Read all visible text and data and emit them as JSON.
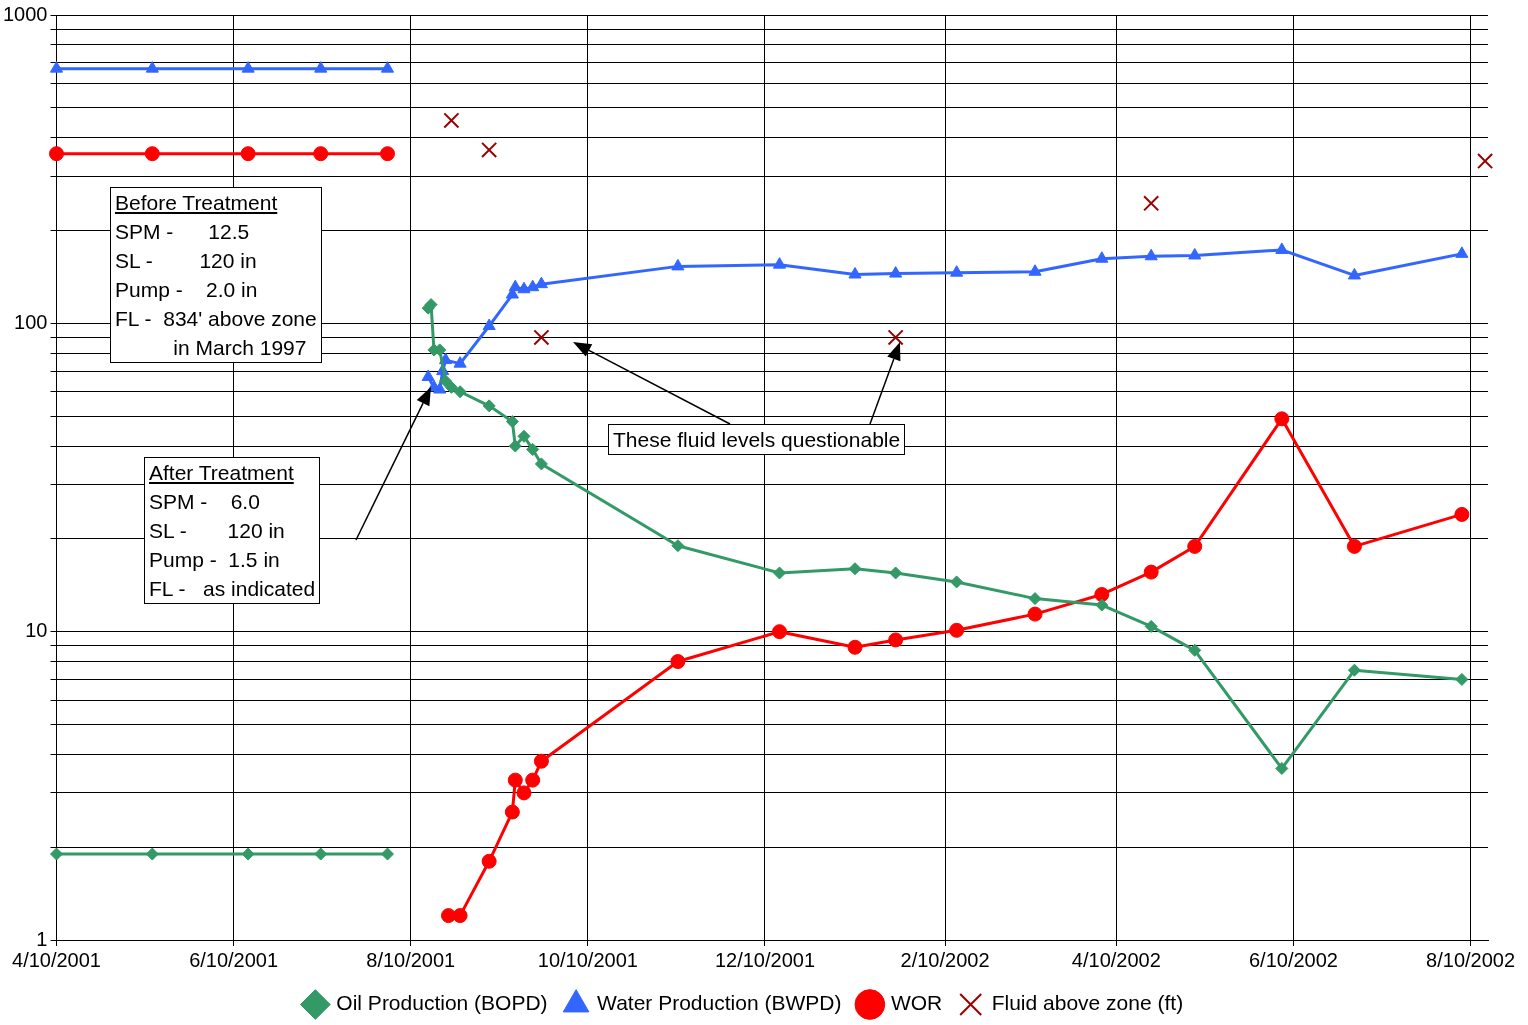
{
  "chart_data": {
    "type": "line",
    "xlim": [
      "2001-04-10",
      "2002-08-16"
    ],
    "xticks": [
      {
        "value": "2001-04-10",
        "label": "4/10/2001"
      },
      {
        "value": "2001-06-10",
        "label": "6/10/2001"
      },
      {
        "value": "2001-08-10",
        "label": "8/10/2001"
      },
      {
        "value": "2001-10-10",
        "label": "10/10/2001"
      },
      {
        "value": "2001-12-10",
        "label": "12/10/2001"
      },
      {
        "value": "2002-02-10",
        "label": "2/10/2002"
      },
      {
        "value": "2002-04-10",
        "label": "4/10/2002"
      },
      {
        "value": "2002-06-10",
        "label": "6/10/2002"
      },
      {
        "value": "2002-08-10",
        "label": "8/10/2002"
      }
    ],
    "log": "y",
    "ylim": [
      1,
      1000
    ],
    "yticks": [
      1,
      {
        "value": 2,
        "label": null
      },
      {
        "value": 3,
        "label": null
      },
      {
        "value": 4,
        "label": null
      },
      {
        "value": 5,
        "label": null
      },
      {
        "value": 6,
        "label": null
      },
      {
        "value": 7,
        "label": null
      },
      {
        "value": 8,
        "label": null
      },
      {
        "value": 9,
        "label": null
      },
      10,
      {
        "value": 20,
        "label": null
      },
      {
        "value": 30,
        "label": null
      },
      {
        "value": 40,
        "label": null
      },
      {
        "value": 50,
        "label": null
      },
      {
        "value": 60,
        "label": null
      },
      {
        "value": 70,
        "label": null
      },
      {
        "value": 80,
        "label": null
      },
      {
        "value": 90,
        "label": null
      },
      100,
      {
        "value": 200,
        "label": null
      },
      {
        "value": 300,
        "label": null
      },
      {
        "value": 400,
        "label": null
      },
      {
        "value": 500,
        "label": null
      },
      {
        "value": 600,
        "label": null
      },
      {
        "value": 700,
        "label": null
      },
      {
        "value": 800,
        "label": null
      },
      {
        "value": 900,
        "label": null
      },
      1000
    ],
    "grid": true,
    "legend": "bottom",
    "series": [
      {
        "name": "Oil Production (BOPD)",
        "type": "line",
        "marker": "diamond",
        "color": "#339966",
        "x": [
          "2001-04-10",
          "2001-05-13",
          "2001-06-15",
          "2001-07-10",
          "2001-08-02",
          "2001-08-09",
          "2001-08-16",
          "2001-08-17",
          "2001-08-18",
          "2001-08-20",
          "2001-08-22",
          "2001-08-24",
          "2001-08-27",
          "2001-09-06",
          "2001-09-14",
          "2001-09-15",
          "2001-09-18",
          "2001-09-21",
          "2001-09-24",
          "2001-11-10",
          "2001-12-15",
          "2002-01-10",
          "2002-01-24",
          "2002-02-14",
          "2002-03-13",
          "2002-04-05",
          "2002-04-22",
          "2002-05-07",
          "2002-06-06",
          "2002-07-01",
          "2002-08-07"
        ],
        "values": [
          1.9,
          1.9,
          1.9,
          1.9,
          1.9,
          null,
          112,
          115,
          82,
          82,
          65,
          62,
          60,
          54,
          48,
          40,
          43,
          39,
          35,
          19,
          15.5,
          16,
          15.5,
          14.5,
          12.8,
          12.2,
          10.4,
          8.7,
          3.6,
          7.5,
          7
        ]
      },
      {
        "name": "Water Production (BWPD)",
        "type": "line",
        "marker": "triangle",
        "color": "#3366ff",
        "x": [
          "2001-04-10",
          "2001-05-13",
          "2001-06-15",
          "2001-07-10",
          "2001-08-02",
          "2001-08-09",
          "2001-08-16",
          "2001-08-18",
          "2001-08-20",
          "2001-08-21",
          "2001-08-22",
          "2001-08-27",
          "2001-09-06",
          "2001-09-14",
          "2001-09-15",
          "2001-09-18",
          "2001-09-21",
          "2001-09-24",
          "2001-11-10",
          "2001-12-15",
          "2002-01-10",
          "2002-01-24",
          "2002-02-14",
          "2002-03-13",
          "2002-04-05",
          "2002-04-22",
          "2002-05-07",
          "2002-06-06",
          "2002-07-01",
          "2002-08-07"
        ],
        "values": [
          670,
          670,
          670,
          670,
          670,
          null,
          67,
          62,
          61,
          70,
          76,
          74,
          98,
          124,
          131,
          129,
          131,
          134,
          153,
          155,
          144,
          145,
          146,
          147,
          162,
          165,
          166,
          173,
          143,
          168
        ]
      },
      {
        "name": "WOR",
        "type": "line",
        "marker": "circle",
        "color": "#ff0000",
        "x": [
          "2001-04-10",
          "2001-05-13",
          "2001-06-15",
          "2001-07-10",
          "2001-08-02",
          "2001-08-09",
          "2001-08-23",
          "2001-08-27",
          "2001-09-06",
          "2001-09-14",
          "2001-09-15",
          "2001-09-18",
          "2001-09-21",
          "2001-09-24",
          "2001-11-10",
          "2001-12-15",
          "2002-01-10",
          "2002-01-24",
          "2002-02-14",
          "2002-03-13",
          "2002-04-05",
          "2002-04-22",
          "2002-05-07",
          "2002-06-06",
          "2002-07-01",
          "2002-08-07"
        ],
        "values": [
          355,
          355,
          355,
          355,
          355,
          null,
          1.2,
          1.2,
          1.8,
          2.6,
          3.3,
          3,
          3.3,
          3.8,
          8,
          10,
          8.9,
          9.4,
          10.1,
          11.4,
          13.2,
          15.6,
          18.9,
          49,
          18.9,
          24
        ]
      },
      {
        "name": "Fluid above zone (ft)",
        "type": "scatter",
        "marker": "cross",
        "color": "#990000",
        "x": [
          "2001-08-24",
          "2001-09-06",
          "2001-09-24",
          "2002-01-24",
          "2002-04-22",
          "2002-08-15"
        ],
        "values": [
          455,
          365,
          90,
          90,
          245,
          336
        ]
      }
    ],
    "annotations": [
      "Before Treatment\nSPM -      12.5\nSL -        120 in\nPump -    2.0 in\nFL -  834' above zone\n          in March 1997",
      "After Treatment\nSPM -    6.0\nSL -       120 in\nPump -  1.5 in\nFL -   as indicated",
      "These fluid levels questionable"
    ]
  }
}
